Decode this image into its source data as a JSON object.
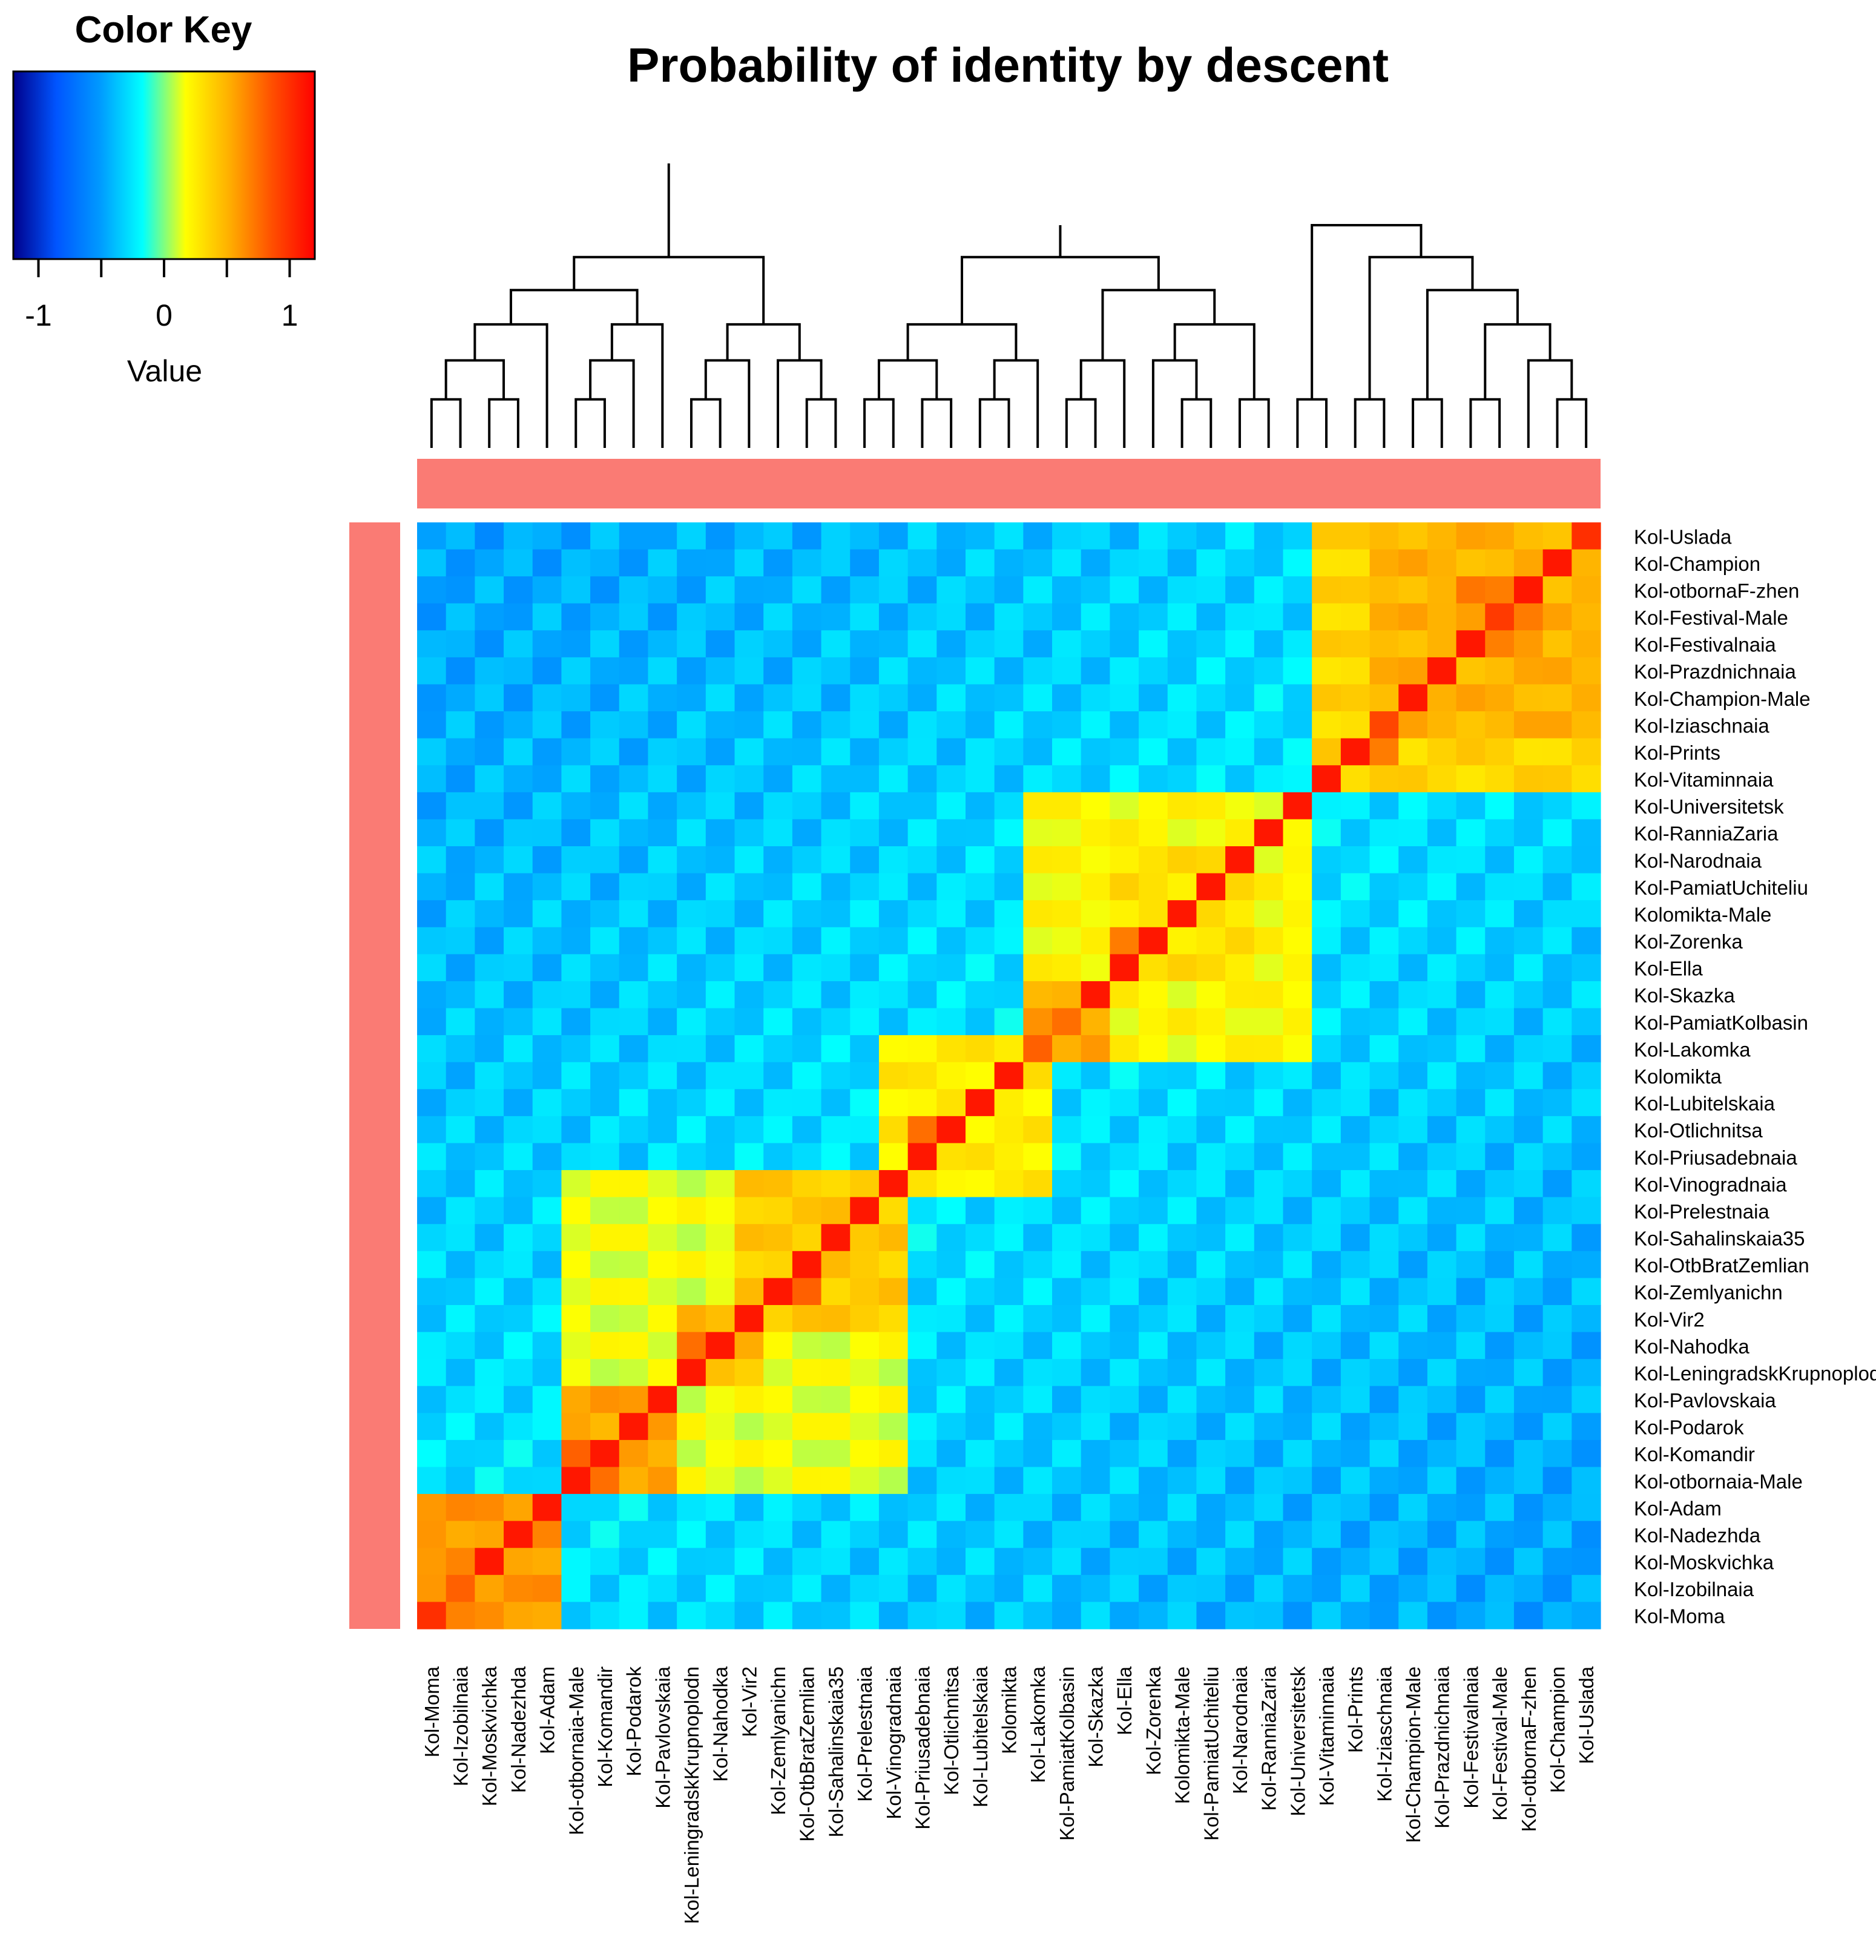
{
  "chart_data": {
    "type": "heatmap",
    "title": "Probability of identity by descent",
    "color_key": {
      "title": "Color Key",
      "xlabel": "Value",
      "ticks": [
        "-1",
        "0",
        "1"
      ],
      "range": [
        -1.2,
        1.2
      ],
      "colors": [
        "#00008b",
        "#0055ff",
        "#0099ff",
        "#00ffff",
        "#ffff00",
        "#ffb000",
        "#ff5000",
        "#ff0000"
      ]
    },
    "side_color": "#fa7b74",
    "columns": [
      "Kol-Moma",
      "Kol-Izobilnaia",
      "Kol-Moskvichka",
      "Kol-Nadezhda",
      "Kol-Adam",
      "Kol-otbornaia-Male",
      "Kol-Komandir",
      "Kol-Podarok",
      "Kol-Pavlovskaia",
      "Kol-LeningradskKrupnoplodn",
      "Kol-Nahodka",
      "Kol-Vir2",
      "Kol-Zemlyanichn",
      "Kol-OtbBratZemlian",
      "Kol-Sahalinskaia35",
      "Kol-Prelestnaia",
      "Kol-Vinogradnaia",
      "Kol-Priusadebnaia",
      "Kol-Otlichnitsa",
      "Kol-Lubitelskaia",
      "Kolomikta",
      "Kol-Lakomka",
      "Kol-PamiatKolbasin",
      "Kol-Skazka",
      "Kol-Ella",
      "Kol-Zorenka",
      "Kolomikta-Male",
      "Kol-PamiatUchiteliu",
      "Kol-Narodnaia",
      "Kol-RanniaZaria",
      "Kol-Universitetsk",
      "Kol-Vitaminnaia",
      "Kol-Prints",
      "Kol-Iziaschnaia",
      "Kol-Champion-Male",
      "Kol-Prazdnichnaia",
      "Kol-Festivalnaia",
      "Kol-Festival-Male",
      "Kol-otbornaF-zhen",
      "Kol-Champion",
      "Kol-Uslada"
    ],
    "rows": [
      "Kol-Uslada",
      "Kol-Champion",
      "Kol-otbornaF-zhen",
      "Kol-Festival-Male",
      "Kol-Festivalnaia",
      "Kol-Prazdnichnaia",
      "Kol-Champion-Male",
      "Kol-Iziaschnaia",
      "Kol-Prints",
      "Kol-Vitaminnaia",
      "Kol-Universitetsk",
      "Kol-RanniaZaria",
      "Kol-Narodnaia",
      "Kol-PamiatUchiteliu",
      "Kolomikta-Male",
      "Kol-Zorenka",
      "Kol-Ella",
      "Kol-Skazka",
      "Kol-PamiatKolbasin",
      "Kol-Lakomka",
      "Kolomikta",
      "Kol-Lubitelskaia",
      "Kol-Otlichnitsa",
      "Kol-Priusadebnaia",
      "Kol-Vinogradnaia",
      "Kol-Prelestnaia",
      "Kol-Sahalinskaia35",
      "Kol-OtbBratZemlian",
      "Kol-Zemlyanichn",
      "Kol-Vir2",
      "Kol-Nahodka",
      "Kol-LeningradskKrupnoplodn",
      "Kol-Pavlovskaia",
      "Kol-Podarok",
      "Kol-Komandir",
      "Kol-otbornaia-Male",
      "Kol-Adam",
      "Kol-Nadezhda",
      "Kol-Moskvichka",
      "Kol-Izobilnaia",
      "Kol-Moma"
    ],
    "clusters": [
      {
        "start": 0,
        "end": 4,
        "value": 0.6
      },
      {
        "start": 5,
        "end": 8,
        "value": 0.55
      },
      {
        "start": 9,
        "end": 11,
        "value": 0.45
      },
      {
        "start": 11,
        "end": 16,
        "value": 0.4
      },
      {
        "start": 5,
        "end": 16,
        "value": 0.15
      },
      {
        "start": 16,
        "end": 21,
        "value": 0.25
      },
      {
        "start": 21,
        "end": 23,
        "value": 0.55
      },
      {
        "start": 21,
        "end": 30,
        "value": 0.2
      },
      {
        "start": 24,
        "end": 28,
        "value": 0.3
      },
      {
        "start": 31,
        "end": 40,
        "value": 0.35
      },
      {
        "start": 33,
        "end": 40,
        "value": 0.5
      },
      {
        "start": 36,
        "end": 38,
        "value": 0.65
      }
    ],
    "highlights": [
      {
        "row": 0,
        "col": 40,
        "value": 1.0
      },
      {
        "row": 3,
        "col": 37,
        "value": 0.95
      },
      {
        "row": 7,
        "col": 33,
        "value": 0.9
      },
      {
        "row": 8,
        "col": 33,
        "value": 0.7
      },
      {
        "row": 19,
        "col": 21,
        "value": 0.8
      },
      {
        "row": 18,
        "col": 22,
        "value": 0.75
      },
      {
        "row": 15,
        "col": 24,
        "value": 0.7
      },
      {
        "row": 22,
        "col": 17,
        "value": 0.75
      },
      {
        "row": 28,
        "col": 13,
        "value": 0.8
      },
      {
        "row": 30,
        "col": 9,
        "value": 0.75
      },
      {
        "row": 34,
        "col": 5,
        "value": 0.8
      },
      {
        "row": 35,
        "col": 6,
        "value": 0.75
      },
      {
        "row": 36,
        "col": 0,
        "value": 0.6
      },
      {
        "row": 39,
        "col": 1,
        "value": 0.8
      },
      {
        "row": 40,
        "col": 0,
        "value": 1.0
      }
    ]
  }
}
